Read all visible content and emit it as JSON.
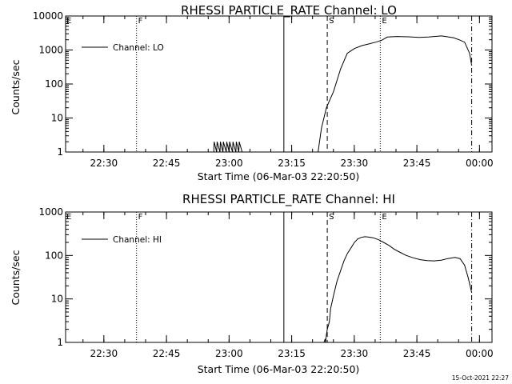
{
  "footer_timestamp": "15-Oct-2021 22:27",
  "chart_data": [
    {
      "type": "line",
      "title": "RHESSI PARTICLE_RATE Channel: LO",
      "xlabel": "Start Time (06-Mar-03 22:20:50)",
      "ylabel": "Counts/sec",
      "yscale": "log",
      "ylim": [
        1,
        10000
      ],
      "yticks": [
        1,
        10,
        100,
        1000,
        10000
      ],
      "ytick_labels": [
        "1",
        "10",
        "100",
        "1000",
        "10000"
      ],
      "xlim": [
        "22:20:50",
        "00:03:00"
      ],
      "xticks": [
        "22:30",
        "22:45",
        "23:00",
        "23:15",
        "23:30",
        "23:45",
        "00:00"
      ],
      "xtick_minutes": [
        9.17,
        24.17,
        39.17,
        54.17,
        69.17,
        84.17,
        99.17
      ],
      "grid": false,
      "legend_position": "top-left",
      "series": [
        {
          "name": "Channel: LO",
          "x_minutes": [
            0,
            35.5,
            35.6,
            36.2,
            36.3,
            37.0,
            37.1,
            37.7,
            37.8,
            38.5,
            38.6,
            39.2,
            39.3,
            40.0,
            40.1,
            40.8,
            40.9,
            41.5,
            41.6,
            42.3,
            42.4,
            60.5,
            61.3,
            62.5,
            64.2,
            65.9,
            67.5,
            69.2,
            71.0,
            72.6,
            74.3,
            75.6,
            77.1,
            79.4,
            82.1,
            84.7,
            87.0,
            88.3,
            90.1,
            92.9,
            94.3,
            95.6,
            96.8,
            97.3
          ],
          "y_values": [
            1,
            1,
            2,
            1,
            2,
            1,
            2,
            1,
            2,
            1,
            2,
            1,
            2,
            1,
            2,
            1,
            2,
            1,
            2,
            1,
            1,
            1,
            5,
            20,
            60,
            280,
            800,
            1100,
            1350,
            1500,
            1700,
            1900,
            2400,
            2500,
            2450,
            2350,
            2400,
            2500,
            2600,
            2300,
            2000,
            1700,
            800,
            350
          ]
        }
      ],
      "vlines": [
        {
          "label": "F",
          "x_minutes": 17.0,
          "style": "dotted"
        },
        {
          "label": "",
          "x_minutes": 52.3,
          "style": "solid"
        },
        {
          "label": "S",
          "x_minutes": 62.7,
          "style": "dashed"
        },
        {
          "label": "E",
          "x_minutes": 75.4,
          "style": "dotted"
        },
        {
          "label": "",
          "x_minutes": 97.3,
          "style": "dash-dot"
        }
      ]
    },
    {
      "type": "line",
      "title": "RHESSI PARTICLE_RATE Channel: HI",
      "xlabel": "Start Time (06-Mar-03 22:20:50)",
      "ylabel": "Counts/sec",
      "yscale": "log",
      "ylim": [
        1,
        1000
      ],
      "yticks": [
        1,
        10,
        100,
        1000
      ],
      "ytick_labels": [
        "1",
        "10",
        "100",
        "1000"
      ],
      "xlim": [
        "22:20:50",
        "00:03:00"
      ],
      "xticks": [
        "22:30",
        "22:45",
        "23:00",
        "23:15",
        "23:30",
        "23:45",
        "00:00"
      ],
      "xtick_minutes": [
        9.17,
        24.17,
        39.17,
        54.17,
        69.17,
        84.17,
        99.17
      ],
      "grid": false,
      "legend_position": "top-left",
      "series": [
        {
          "name": "Channel: HI",
          "x_minutes": [
            0,
            61.9,
            62.2,
            62.3,
            62.5,
            62.7,
            63.2,
            63.5,
            64.2,
            65.0,
            65.9,
            66.7,
            67.5,
            68.4,
            69.2,
            70.0,
            70.8,
            71.7,
            72.5,
            73.7,
            75.0,
            76.2,
            77.5,
            78.7,
            80.0,
            81.6,
            83.3,
            85.0,
            86.6,
            88.3,
            90.0,
            91.6,
            93.3,
            94.5,
            95.6,
            96.5,
            97.3
          ],
          "y_values": [
            1,
            1,
            1.2,
            1,
            1.5,
            2,
            3,
            6,
            12,
            25,
            45,
            75,
            110,
            150,
            200,
            240,
            260,
            270,
            265,
            255,
            230,
            200,
            170,
            140,
            120,
            100,
            88,
            80,
            76,
            75,
            78,
            85,
            90,
            85,
            60,
            30,
            14
          ]
        }
      ],
      "vlines": [
        {
          "label": "F",
          "x_minutes": 17.0,
          "style": "dotted"
        },
        {
          "label": "",
          "x_minutes": 52.3,
          "style": "solid"
        },
        {
          "label": "S",
          "x_minutes": 62.7,
          "style": "dashed"
        },
        {
          "label": "E",
          "x_minutes": 75.4,
          "style": "dotted"
        },
        {
          "label": "",
          "x_minutes": 97.3,
          "style": "dash-dot"
        }
      ]
    }
  ]
}
